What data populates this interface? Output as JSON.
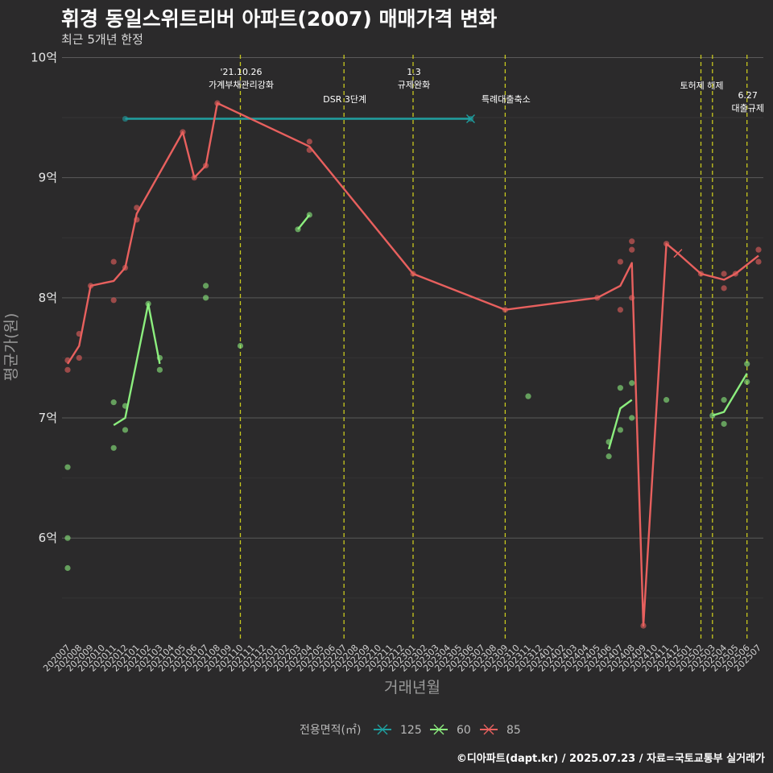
{
  "header": {
    "title": "휘경 동일스위트리버 아파트(2007) 매매가격 변화",
    "subtitle": "최근 5개년 한정"
  },
  "footer": {
    "caption": "©디아파트(dapt.kr) / 2025.07.23 / 자료=국토교통부 실거래가"
  },
  "chart_data": {
    "type": "line",
    "title": "휘경 동일스위트리버 아파트(2007) 매매가격 변화",
    "subtitle": "최근 5개년 한정",
    "xlabel": "거래년월",
    "ylabel": "평균가(원)",
    "ylim": [
      5.15,
      10.05
    ],
    "yticks": [
      6,
      7,
      8,
      9,
      10
    ],
    "ytick_labels": [
      "6억",
      "7억",
      "8억",
      "9억",
      "10억"
    ],
    "categories": [
      "202007",
      "202008",
      "202009",
      "202010",
      "202011",
      "202012",
      "202101",
      "202102",
      "202103",
      "202104",
      "202105",
      "202106",
      "202107",
      "202108",
      "202109",
      "202110",
      "202111",
      "202112",
      "202201",
      "202202",
      "202203",
      "202204",
      "202205",
      "202206",
      "202207",
      "202208",
      "202209",
      "202210",
      "202211",
      "202212",
      "202301",
      "202302",
      "202303",
      "202304",
      "202305",
      "202306",
      "202307",
      "202308",
      "202309",
      "202310",
      "202311",
      "202312",
      "202401",
      "202402",
      "202403",
      "202404",
      "202405",
      "202406",
      "202407",
      "202408",
      "202409",
      "202410",
      "202411",
      "202412",
      "202501",
      "202502",
      "202503",
      "202504",
      "202505",
      "202506",
      "202507"
    ],
    "legend_title": "전용면적(㎡)",
    "colors": {
      "125": "#1f9fa0",
      "60": "#8cee7e",
      "85": "#e8605e",
      "event_line": "#c8c81e",
      "grid": "#5a5a5a"
    },
    "series": [
      {
        "name": "125",
        "line": [
          [
            "202012",
            9.49
          ],
          [
            "202306",
            9.49
          ]
        ],
        "points": [
          [
            "202012",
            9.49
          ],
          [
            "202306",
            9.49
          ]
        ],
        "cancelled": [
          "202306"
        ]
      },
      {
        "name": "60",
        "line_segments": [
          [
            [
              "202011",
              6.94
            ],
            [
              "202012",
              7.0
            ],
            [
              "202102",
              7.95
            ],
            [
              "202103",
              7.45
            ]
          ],
          [
            [
              "202203",
              8.57
            ],
            [
              "202204",
              8.69
            ]
          ],
          [
            [
              "202406",
              6.74
            ],
            [
              "202407",
              7.08
            ],
            [
              "202408",
              7.15
            ]
          ],
          [
            [
              "202503",
              7.02
            ],
            [
              "202504",
              7.05
            ],
            [
              "202506",
              7.37
            ]
          ]
        ],
        "points": [
          [
            "202007",
            6.59
          ],
          [
            "202007",
            6.0
          ],
          [
            "202007",
            5.75
          ],
          [
            "202011",
            7.13
          ],
          [
            "202011",
            6.75
          ],
          [
            "202012",
            7.1
          ],
          [
            "202012",
            6.9
          ],
          [
            "202102",
            7.95
          ],
          [
            "202103",
            7.5
          ],
          [
            "202103",
            7.4
          ],
          [
            "202107",
            8.1
          ],
          [
            "202107",
            8.0
          ],
          [
            "202110",
            7.6
          ],
          [
            "202203",
            8.57
          ],
          [
            "202204",
            8.69
          ],
          [
            "202311",
            7.18
          ],
          [
            "202406",
            6.8
          ],
          [
            "202406",
            6.68
          ],
          [
            "202407",
            7.25
          ],
          [
            "202407",
            6.9
          ],
          [
            "202408",
            7.29
          ],
          [
            "202408",
            7.0
          ],
          [
            "202411",
            7.15
          ],
          [
            "202503",
            7.02
          ],
          [
            "202504",
            7.15
          ],
          [
            "202504",
            6.95
          ],
          [
            "202506",
            7.45
          ],
          [
            "202506",
            7.3
          ]
        ]
      },
      {
        "name": "85",
        "line": [
          [
            "202007",
            7.45
          ],
          [
            "202008",
            7.6
          ],
          [
            "202009",
            8.1
          ],
          [
            "202011",
            8.14
          ],
          [
            "202012",
            8.25
          ],
          [
            "202101",
            8.7
          ],
          [
            "202105",
            9.38
          ],
          [
            "202106",
            9.0
          ],
          [
            "202107",
            9.1
          ],
          [
            "202108",
            9.62
          ],
          [
            "202204",
            9.26
          ],
          [
            "202301",
            8.2
          ],
          [
            "202309",
            7.9
          ],
          [
            "202405",
            8.0
          ],
          [
            "202407",
            8.1
          ],
          [
            "202408",
            8.29
          ],
          [
            "202409",
            5.27
          ],
          [
            "202411",
            8.45
          ],
          [
            "202412",
            8.37
          ],
          [
            "202502",
            8.2
          ],
          [
            "202504",
            8.15
          ],
          [
            "202505",
            8.2
          ],
          [
            "202507",
            8.35
          ]
        ],
        "points": [
          [
            "202007",
            7.48
          ],
          [
            "202007",
            7.4
          ],
          [
            "202008",
            7.7
          ],
          [
            "202008",
            7.5
          ],
          [
            "202009",
            8.1
          ],
          [
            "202011",
            8.3
          ],
          [
            "202011",
            7.98
          ],
          [
            "202012",
            8.25
          ],
          [
            "202101",
            8.75
          ],
          [
            "202101",
            8.65
          ],
          [
            "202105",
            9.38
          ],
          [
            "202106",
            9.0
          ],
          [
            "202107",
            9.1
          ],
          [
            "202108",
            9.62
          ],
          [
            "202204",
            9.3
          ],
          [
            "202204",
            9.23
          ],
          [
            "202301",
            8.2
          ],
          [
            "202309",
            7.9
          ],
          [
            "202405",
            8.0
          ],
          [
            "202407",
            8.3
          ],
          [
            "202407",
            7.9
          ],
          [
            "202408",
            8.47
          ],
          [
            "202408",
            8.4
          ],
          [
            "202408",
            8.0
          ],
          [
            "202409",
            5.27
          ],
          [
            "202411",
            8.45
          ],
          [
            "202502",
            8.2
          ],
          [
            "202504",
            8.2
          ],
          [
            "202504",
            8.08
          ],
          [
            "202505",
            8.2
          ],
          [
            "202507",
            8.4
          ],
          [
            "202507",
            8.3
          ]
        ],
        "cancelled": [
          "202412"
        ]
      }
    ],
    "events": [
      {
        "at": "202110",
        "lines": [
          "'21.10.26",
          "가계부채관리강화"
        ],
        "row": 1
      },
      {
        "at": "202207",
        "lines": [
          "DSR 3단계"
        ],
        "row": 3
      },
      {
        "at": "202301",
        "lines": [
          "1.3",
          "규제완화"
        ],
        "row": 1
      },
      {
        "at": "202309",
        "lines": [
          "특례대출축소"
        ],
        "row": 3
      },
      {
        "at": "202502",
        "lines": [
          "토허제 해제"
        ],
        "row": 2
      },
      {
        "at": "202503",
        "lines": [],
        "row": 0
      },
      {
        "at": "202506",
        "lines": [
          "6.27",
          "대출규제"
        ],
        "row": 2.7
      }
    ]
  }
}
